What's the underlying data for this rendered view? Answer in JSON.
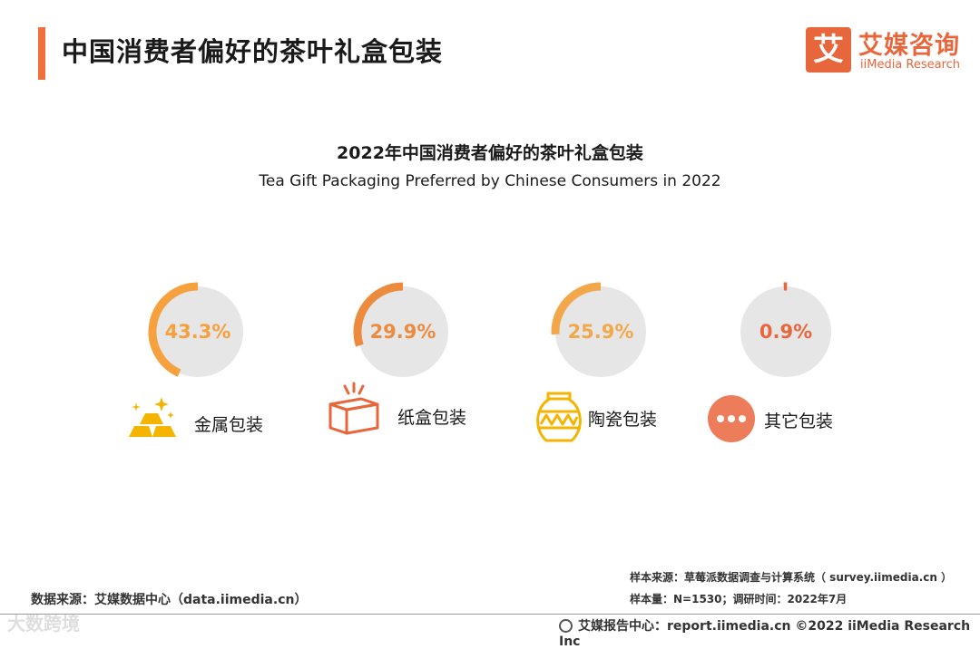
{
  "header": {
    "title": "中国消费者偏好的茶叶礼盒包装",
    "logo_mark": "艾",
    "logo_cn": "艾媒咨询",
    "logo_en": "iiMedia Research"
  },
  "chart_data": {
    "type": "pie",
    "title": "2022年中国消费者偏好的茶叶礼盒包装",
    "subtitle": "Tea Gift Packaging Preferred by Chinese Consumers in 2022",
    "categories": [
      "金属包装",
      "纸盒包装",
      "陶瓷包装",
      "其它包装"
    ],
    "values": [
      43.3,
      29.9,
      25.9,
      0.9
    ],
    "value_labels": [
      "43.3%",
      "29.9%",
      "25.9%",
      "0.9%"
    ],
    "unit": "%",
    "colors": [
      "#f6a03e",
      "#ec8a3d",
      "#f2a84a",
      "#e8663b"
    ],
    "track_color": "#e6e6e6",
    "icons": [
      "gold-bars-icon",
      "paper-box-icon",
      "ceramic-jar-icon",
      "more-dots-icon"
    ]
  },
  "footer": {
    "data_source": "数据来源：艾媒数据中心（data.iimedia.cn）",
    "sample_source": "样本来源：草莓派数据调查与计算系统（ survey.iimedia.cn ）",
    "sample_size": "样本量：N=1530；调研时间：2022年7月",
    "report_center": "艾媒报告中心：report.iimedia.cn  ©2022  iiMedia Research  Inc",
    "watermark": "大数跨境"
  }
}
